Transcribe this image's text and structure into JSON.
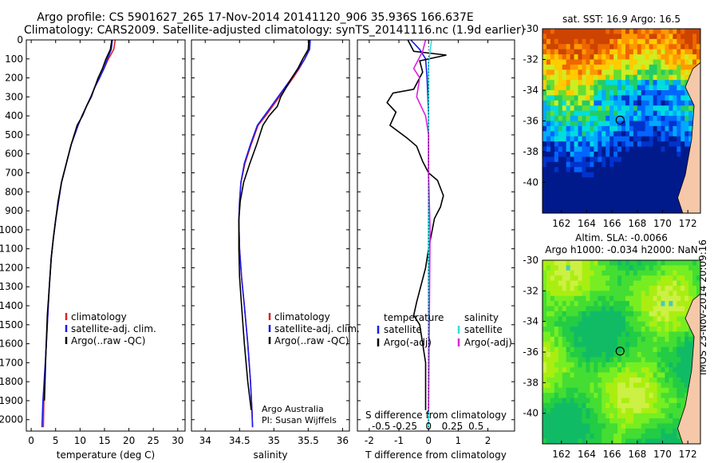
{
  "titles": {
    "line1": "Argo profile: CS 5901627_265 17-Nov-2014 20141120_906 35.936S 166.637E",
    "line2": "Climatology: CARS2009. Satellite-adjusted climatology: synTS_20141116.nc (1.9d earlier)"
  },
  "stamp": "IMOS 23-Nov-2014 20:09:16",
  "colors": {
    "climatology": "#dd2222",
    "satellite": "#1a1aee",
    "argo": "#000000",
    "sat_salinity": "#33dddd",
    "argo_salinity": "#dd22dd"
  },
  "chart_data": [
    {
      "type": "line",
      "id": "temperature",
      "xlabel": "temperature (deg C)",
      "ylabel": "",
      "xlim": [
        -1,
        31.5
      ],
      "ylim": [
        2060,
        0
      ],
      "xticks": [
        0,
        5,
        10,
        15,
        20,
        25,
        30
      ],
      "yticks": [
        0,
        100,
        200,
        300,
        400,
        500,
        600,
        700,
        800,
        900,
        1000,
        1100,
        1200,
        1300,
        1400,
        1500,
        1600,
        1700,
        1800,
        1900,
        2000
      ],
      "legend": [
        "climatology",
        "satellite-adj. clim.",
        "Argo(..raw -QC)"
      ],
      "series": [
        {
          "name": "climatology",
          "color": "#dd2222",
          "x": [
            17.2,
            16.9,
            15.8,
            14.9,
            14.0,
            13.0,
            12.2,
            11.3,
            10.4,
            9.6,
            8.2,
            7.2,
            6.2,
            5.6,
            5.0,
            4.5,
            4.1,
            3.7,
            3.4,
            3.0,
            2.6,
            2.5
          ],
          "y": [
            0,
            50,
            100,
            150,
            200,
            250,
            300,
            350,
            400,
            450,
            550,
            650,
            750,
            850,
            950,
            1050,
            1150,
            1300,
            1450,
            1650,
            1900,
            2040
          ]
        },
        {
          "name": "satellite-adj. clim.",
          "color": "#1a1aee",
          "x": [
            16.6,
            16.4,
            15.6,
            14.9,
            14.0,
            13.0,
            12.2,
            11.3,
            10.4,
            9.6,
            8.2,
            7.2,
            6.2,
            5.6,
            5.0,
            4.5,
            4.1,
            3.7,
            3.4,
            3.0,
            2.4,
            2.2
          ],
          "y": [
            0,
            50,
            100,
            150,
            200,
            250,
            300,
            350,
            400,
            450,
            550,
            650,
            750,
            850,
            950,
            1050,
            1150,
            1300,
            1450,
            1650,
            1900,
            2040
          ]
        },
        {
          "name": "Argo(..raw -QC)",
          "color": "#000000",
          "x": [
            16.5,
            16.2,
            15.3,
            14.6,
            13.7,
            12.3,
            11.3,
            10.5,
            9.4,
            8.2,
            7.2,
            6.2,
            5.5,
            5.0,
            4.5,
            4.1,
            3.7,
            3.3,
            3.0,
            2.7
          ],
          "y": [
            0,
            50,
            100,
            150,
            200,
            300,
            350,
            400,
            450,
            550,
            650,
            750,
            850,
            950,
            1050,
            1150,
            1300,
            1450,
            1650,
            1900
          ]
        }
      ]
    },
    {
      "type": "line",
      "id": "salinity",
      "xlabel": "salinity",
      "xlim": [
        33.8,
        36.1
      ],
      "ylim": [
        2060,
        0
      ],
      "xticks": [
        34,
        34.5,
        35,
        35.5,
        36
      ],
      "legend": [
        "climatology",
        "satellite-adj. clim.",
        "Argo(..raw -QC)"
      ],
      "annotation": [
        "Argo Australia",
        "PI: Susan Wijffels"
      ],
      "series": [
        {
          "name": "climatology",
          "color": "#dd2222",
          "x": [
            35.52,
            35.51,
            35.45,
            35.37,
            35.28,
            35.18,
            35.08,
            34.98,
            34.88,
            34.77,
            34.67,
            34.58,
            34.52,
            34.5,
            34.49,
            34.5,
            34.53,
            34.57,
            34.62,
            34.66,
            34.68,
            34.69
          ],
          "y": [
            0,
            50,
            100,
            150,
            200,
            250,
            300,
            350,
            400,
            450,
            550,
            650,
            750,
            850,
            950,
            1100,
            1250,
            1400,
            1600,
            1800,
            1950,
            2040
          ]
        },
        {
          "name": "satellite-adj. clim.",
          "color": "#1a1aee",
          "x": [
            35.53,
            35.52,
            35.45,
            35.36,
            35.26,
            35.16,
            35.06,
            34.96,
            34.86,
            34.76,
            34.66,
            34.57,
            34.52,
            34.5,
            34.49,
            34.5,
            34.53,
            34.57,
            34.62,
            34.66,
            34.68,
            34.69
          ],
          "y": [
            0,
            50,
            100,
            150,
            200,
            250,
            300,
            350,
            400,
            450,
            550,
            650,
            750,
            850,
            950,
            1100,
            1250,
            1400,
            1600,
            1800,
            1950,
            2040
          ]
        },
        {
          "name": "Argo(..raw -QC)",
          "color": "#000000",
          "x": [
            35.51,
            35.5,
            35.42,
            35.35,
            35.26,
            35.1,
            35.05,
            34.93,
            34.84,
            34.75,
            34.65,
            34.56,
            34.51,
            34.49,
            34.49,
            34.5,
            34.53,
            34.57,
            34.62,
            34.67
          ],
          "y": [
            0,
            50,
            100,
            150,
            200,
            300,
            350,
            400,
            450,
            550,
            650,
            750,
            850,
            950,
            1100,
            1250,
            1400,
            1600,
            1800,
            1950
          ]
        }
      ]
    },
    {
      "type": "line",
      "id": "difference",
      "xlabel": "T difference from climatology",
      "xlabel_top": "S difference from climatology",
      "xlim": [
        -2.4,
        2.9
      ],
      "ylim": [
        2060,
        0
      ],
      "xticks": [
        -2,
        -1,
        0,
        1,
        2
      ],
      "xticks_s": [
        "-0.5",
        "-0.25",
        "0",
        "0.25",
        "0.5"
      ],
      "xticks_s_values": [
        -1.6,
        -0.8,
        0,
        0.8,
        1.6
      ],
      "legend_titles": [
        "temperature",
        "salinity"
      ],
      "legend": [
        "satellite",
        "Argo(-adj)",
        "satellite",
        "Argo(-adj)"
      ],
      "series": [
        {
          "name": "satellite",
          "color": "#1a1aee",
          "x": [
            -0.6,
            -0.3,
            -0.1,
            -0.05,
            0,
            0,
            0,
            0,
            0,
            0
          ],
          "y": [
            0,
            50,
            100,
            200,
            400,
            700,
            1000,
            1400,
            1800,
            2040
          ]
        },
        {
          "name": "Argo(-adj)",
          "color": "#000000",
          "x": [
            -0.7,
            -0.5,
            0.6,
            -0.3,
            -0.2,
            -0.5,
            -1.2,
            -1.4,
            -1.1,
            -1.3,
            -0.7,
            -0.4,
            -0.2,
            0.0,
            0.3,
            0.5,
            0.4,
            0.2,
            0.0,
            -0.1,
            -0.4,
            -0.5,
            -0.3,
            -0.1,
            -0.1
          ],
          "y": [
            0,
            60,
            80,
            110,
            170,
            260,
            280,
            330,
            380,
            450,
            520,
            560,
            640,
            700,
            740,
            820,
            880,
            940,
            1100,
            1200,
            1380,
            1450,
            1500,
            1700,
            1950
          ]
        },
        {
          "name": "satellite",
          "color": "#33dddd",
          "x": [
            0.1,
            0.05,
            0.0,
            0.0,
            0.0,
            0.0,
            0.0,
            0.0,
            0.0,
            0.0
          ],
          "y": [
            0,
            60,
            120,
            200,
            300,
            500,
            700,
            1000,
            1500,
            2040
          ]
        },
        {
          "name": "Argo(-adj)",
          "color": "#dd22dd",
          "x": [
            -0.1,
            -0.2,
            -0.5,
            -0.3,
            -0.4,
            -0.1,
            0.0,
            0.0,
            0.05,
            0.0
          ],
          "y": [
            0,
            60,
            150,
            200,
            300,
            400,
            500,
            700,
            1000,
            1950
          ]
        }
      ]
    },
    {
      "type": "heatmap",
      "id": "sst_map",
      "title": "sat. SST: 16.9 Argo: 16.5",
      "xlim": [
        160.5,
        173
      ],
      "ylim": [
        -42,
        -30
      ],
      "xticks": [
        162,
        164,
        166,
        168,
        170,
        172
      ],
      "yticks": [
        -30,
        -32,
        -34,
        -36,
        -38,
        -40
      ],
      "marker": {
        "lon": 166.64,
        "lat": -35.94
      }
    },
    {
      "type": "heatmap",
      "id": "sla_map",
      "title": "Altim. SLA: -0.0066",
      "subtitle": "Argo h1000: -0.034 h2000: NaN",
      "xlim": [
        160.5,
        173
      ],
      "ylim": [
        -42,
        -30
      ],
      "xticks": [
        162,
        164,
        166,
        168,
        170,
        172
      ],
      "yticks": [
        -30,
        -32,
        -34,
        -36,
        -38,
        -40
      ],
      "marker": {
        "lon": 166.64,
        "lat": -35.94
      }
    }
  ]
}
